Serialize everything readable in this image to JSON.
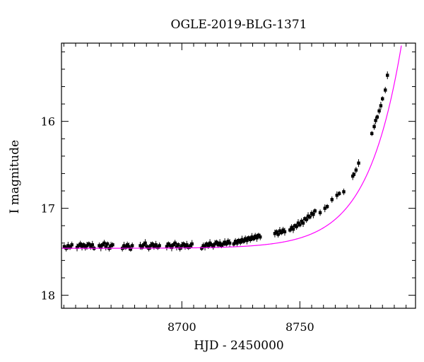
{
  "chart_data": {
    "type": "scatter",
    "title": "OGLE-2019-BLG-1371",
    "xlabel": "HJD - 2450000",
    "ylabel": "I magnitude",
    "xlim": [
      8649,
      8799
    ],
    "ylim": [
      18.15,
      15.1
    ],
    "y_inverted": true,
    "x_major_ticks": [
      8700,
      8750
    ],
    "x_minor_step": 5,
    "y_major_ticks": [
      16,
      17,
      18
    ],
    "y_minor_step": 0.2,
    "grid": false,
    "legend": "none",
    "colors": {
      "data": "#000000",
      "model": "#ff00ff"
    },
    "series": [
      {
        "kind": "points",
        "points": [
          [
            8650.2,
            17.44
          ],
          [
            8651.0,
            17.46
          ],
          [
            8651.8,
            17.43
          ],
          [
            8652.6,
            17.45
          ],
          [
            8653.4,
            17.42
          ],
          [
            8655.6,
            17.45
          ],
          [
            8656.3,
            17.43
          ],
          [
            8657.0,
            17.41
          ],
          [
            8657.7,
            17.44
          ],
          [
            8658.4,
            17.42
          ],
          [
            8659.1,
            17.45
          ],
          [
            8659.8,
            17.43
          ],
          [
            8660.6,
            17.41
          ],
          [
            8661.4,
            17.44
          ],
          [
            8662.1,
            17.42
          ],
          [
            8662.8,
            17.46
          ],
          [
            8665.0,
            17.43
          ],
          [
            8665.7,
            17.45
          ],
          [
            8666.4,
            17.42
          ],
          [
            8667.1,
            17.4
          ],
          [
            8667.8,
            17.44
          ],
          [
            8668.5,
            17.41
          ],
          [
            8669.2,
            17.46
          ],
          [
            8670.0,
            17.43
          ],
          [
            8670.7,
            17.42
          ],
          [
            8674.8,
            17.46
          ],
          [
            8675.5,
            17.43
          ],
          [
            8676.2,
            17.45
          ],
          [
            8676.9,
            17.42
          ],
          [
            8677.6,
            17.44
          ],
          [
            8678.3,
            17.47
          ],
          [
            8679.0,
            17.43
          ],
          [
            8682.4,
            17.43
          ],
          [
            8683.1,
            17.45
          ],
          [
            8683.8,
            17.42
          ],
          [
            8684.5,
            17.4
          ],
          [
            8685.2,
            17.44
          ],
          [
            8686.0,
            17.46
          ],
          [
            8686.8,
            17.43
          ],
          [
            8687.5,
            17.41
          ],
          [
            8688.2,
            17.44
          ],
          [
            8689.0,
            17.42
          ],
          [
            8689.8,
            17.45
          ],
          [
            8690.5,
            17.43
          ],
          [
            8693.6,
            17.44
          ],
          [
            8694.3,
            17.41
          ],
          [
            8695.0,
            17.43
          ],
          [
            8695.7,
            17.45
          ],
          [
            8696.4,
            17.42
          ],
          [
            8697.1,
            17.4
          ],
          [
            8697.8,
            17.44
          ],
          [
            8698.5,
            17.42
          ],
          [
            8699.2,
            17.46
          ],
          [
            8700.0,
            17.43
          ],
          [
            8700.7,
            17.41
          ],
          [
            8701.4,
            17.44
          ],
          [
            8702.1,
            17.42
          ],
          [
            8702.8,
            17.45
          ],
          [
            8703.6,
            17.43
          ],
          [
            8704.3,
            17.41
          ],
          [
            8708.4,
            17.46
          ],
          [
            8709.1,
            17.43
          ],
          [
            8709.8,
            17.44
          ],
          [
            8710.5,
            17.41
          ],
          [
            8711.2,
            17.43
          ],
          [
            8711.9,
            17.4
          ],
          [
            8712.6,
            17.42
          ],
          [
            8713.3,
            17.44
          ],
          [
            8714.0,
            17.41
          ],
          [
            8714.7,
            17.39
          ],
          [
            8715.4,
            17.42
          ],
          [
            8716.1,
            17.4
          ],
          [
            8716.8,
            17.43
          ],
          [
            8717.5,
            17.41
          ],
          [
            8718.2,
            17.39
          ],
          [
            8718.9,
            17.41
          ],
          [
            8719.6,
            17.38
          ],
          [
            8720.3,
            17.4
          ],
          [
            8722.0,
            17.41
          ],
          [
            8722.7,
            17.38
          ],
          [
            8723.4,
            17.4
          ],
          [
            8724.1,
            17.37
          ],
          [
            8724.8,
            17.39
          ],
          [
            8725.5,
            17.36
          ],
          [
            8726.2,
            17.38
          ],
          [
            8726.9,
            17.35
          ],
          [
            8727.6,
            17.37
          ],
          [
            8728.3,
            17.34
          ],
          [
            8729.0,
            17.36
          ],
          [
            8729.7,
            17.33
          ],
          [
            8730.4,
            17.35
          ],
          [
            8731.1,
            17.32
          ],
          [
            8731.8,
            17.34
          ],
          [
            8732.5,
            17.31
          ],
          [
            8733.2,
            17.33
          ],
          [
            8739.4,
            17.29
          ],
          [
            8740.1,
            17.27
          ],
          [
            8740.8,
            17.3
          ],
          [
            8741.5,
            17.26
          ],
          [
            8742.2,
            17.28
          ],
          [
            8742.9,
            17.25
          ],
          [
            8743.6,
            17.27
          ],
          [
            8745.8,
            17.25
          ],
          [
            8746.5,
            17.22
          ],
          [
            8747.2,
            17.24
          ],
          [
            8747.9,
            17.2
          ],
          [
            8748.6,
            17.21
          ],
          [
            8749.3,
            17.17
          ],
          [
            8750.0,
            17.19
          ],
          [
            8750.7,
            17.15
          ],
          [
            8751.4,
            17.17
          ],
          [
            8752.1,
            17.12
          ],
          [
            8752.8,
            17.13
          ],
          [
            8753.5,
            17.09
          ],
          [
            8754.2,
            17.1
          ],
          [
            8755.0,
            17.06
          ],
          [
            8755.7,
            17.07
          ],
          [
            8756.4,
            17.03
          ],
          [
            8758.6,
            17.05
          ],
          [
            8760.6,
            17.0
          ],
          [
            8761.6,
            16.98
          ],
          [
            8763.6,
            16.9
          ],
          [
            8765.7,
            16.85
          ],
          [
            8766.7,
            16.83
          ],
          [
            8768.6,
            16.81
          ],
          [
            8772.4,
            16.63
          ],
          [
            8772.9,
            16.61
          ],
          [
            8773.8,
            16.56
          ],
          [
            8774.9,
            16.48
          ],
          [
            8780.5,
            16.14
          ],
          [
            8781.5,
            16.06
          ],
          [
            8782.1,
            15.99
          ],
          [
            8782.8,
            15.95
          ],
          [
            8783.6,
            15.88
          ],
          [
            8784.3,
            15.82
          ],
          [
            8785.0,
            15.74
          ],
          [
            8786.2,
            15.64
          ],
          [
            8787.1,
            15.47
          ]
        ]
      },
      {
        "kind": "model",
        "t0": 8803,
        "baseline": 17.46,
        "amplitude": 4.67,
        "timescale": 14.4
      }
    ]
  }
}
